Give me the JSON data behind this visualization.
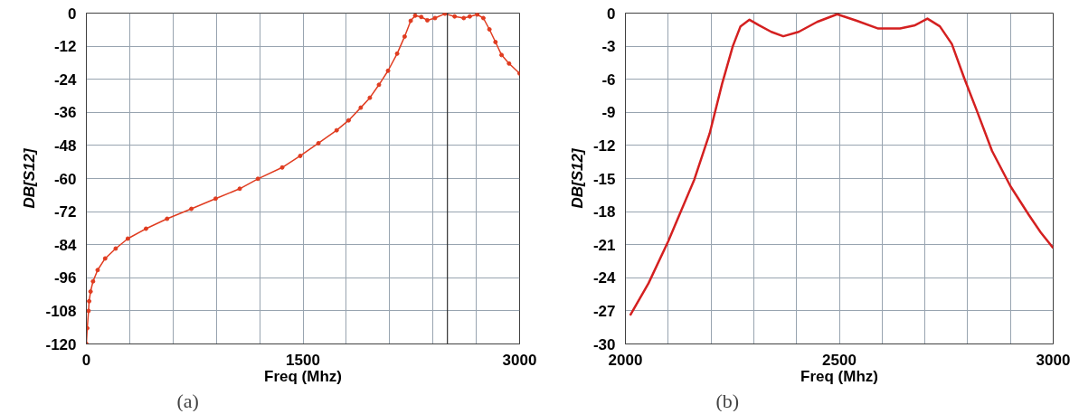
{
  "chart_data": [
    {
      "type": "line",
      "xlabel": "Freq (Mhz)",
      "ylabel": "DB[S12]",
      "annotations": [
        "(a)"
      ],
      "marker": "circle",
      "line_style": "solid",
      "grid": true,
      "xlim": [
        0,
        3000
      ],
      "xticks": [
        0,
        {
          "value": 300,
          "label": null
        },
        {
          "value": 600,
          "label": null
        },
        {
          "value": 900,
          "label": null
        },
        {
          "value": 1200,
          "label": null
        },
        1500,
        {
          "value": 1800,
          "label": null
        },
        {
          "value": 2100,
          "label": null
        },
        {
          "value": 2400,
          "label": null
        },
        {
          "value": 2700,
          "label": null
        },
        3000
      ],
      "ylim": [
        -120,
        0
      ],
      "yticks": [
        0,
        -12,
        -24,
        -36,
        -48,
        -60,
        -72,
        -84,
        -96,
        -108,
        -120
      ],
      "ref_lines": [
        {
          "axis": "x",
          "value": 2500,
          "color": "#303030"
        }
      ],
      "series": [
        {
          "color": "#e03c20",
          "x": [
            0,
            6,
            15,
            19,
            29,
            46,
            78,
            130,
            203,
            287,
            413,
            559,
            727,
            895,
            1062,
            1188,
            1356,
            1481,
            1607,
            1733,
            1816,
            1900,
            1963,
            2026,
            2089,
            2152,
            2204,
            2246,
            2277,
            2319,
            2361,
            2414,
            2483,
            2550,
            2613,
            2655,
            2707,
            2749,
            2791,
            2833,
            2875,
            2927,
            3000
          ],
          "values": [
            -120,
            -114.3,
            -108,
            -104.5,
            -101,
            -97.3,
            -93.2,
            -89,
            -85.4,
            -81.8,
            -78.2,
            -74.6,
            -71,
            -67.3,
            -63.7,
            -60.1,
            -56,
            -51.8,
            -47.2,
            -42.5,
            -38.9,
            -34.3,
            -30.7,
            -26,
            -20.9,
            -14.7,
            -8.5,
            -2.8,
            -0.9,
            -1.4,
            -2.6,
            -1.8,
            -0.2,
            -1.2,
            -1.8,
            -1.2,
            -0.5,
            -1.8,
            -5.9,
            -10.5,
            -15.2,
            -18.3,
            -21.9
          ]
        }
      ]
    },
    {
      "type": "line",
      "xlabel": "Freq (Mhz)",
      "ylabel": "DB[S12]",
      "annotations": [
        "(b)"
      ],
      "line_style": "solid",
      "grid": true,
      "xlim": [
        2000,
        3000
      ],
      "xticks": [
        2000,
        {
          "value": 2100,
          "label": null
        },
        {
          "value": 2200,
          "label": null
        },
        {
          "value": 2300,
          "label": null
        },
        {
          "value": 2400,
          "label": null
        },
        2500,
        {
          "value": 2600,
          "label": null
        },
        {
          "value": 2700,
          "label": null
        },
        {
          "value": 2800,
          "label": null
        },
        {
          "value": 2900,
          "label": null
        },
        3000
      ],
      "ylim": [
        -30,
        0
      ],
      "yticks": [
        0,
        -3,
        -6,
        -9,
        -12,
        -15,
        -18,
        -21,
        -24,
        -27,
        -30
      ],
      "series": [
        {
          "color": "#d42020",
          "x": [
            2011,
            2054,
            2100,
            2125,
            2161,
            2197,
            2226,
            2251,
            2269,
            2290,
            2312,
            2341,
            2369,
            2405,
            2448,
            2495,
            2541,
            2591,
            2642,
            2677,
            2706,
            2735,
            2763,
            2792,
            2821,
            2857,
            2900,
            2943,
            2971,
            3000
          ],
          "values": [
            -27.4,
            -24.5,
            -20.7,
            -18.4,
            -15.1,
            -10.9,
            -6.4,
            -3.0,
            -1.2,
            -0.6,
            -1.1,
            -1.7,
            -2.1,
            -1.7,
            -0.8,
            -0.1,
            -0.7,
            -1.4,
            -1.4,
            -1.1,
            -0.5,
            -1.2,
            -2.8,
            -5.9,
            -8.8,
            -12.5,
            -15.7,
            -18.3,
            -19.9,
            -21.3
          ]
        }
      ]
    }
  ]
}
